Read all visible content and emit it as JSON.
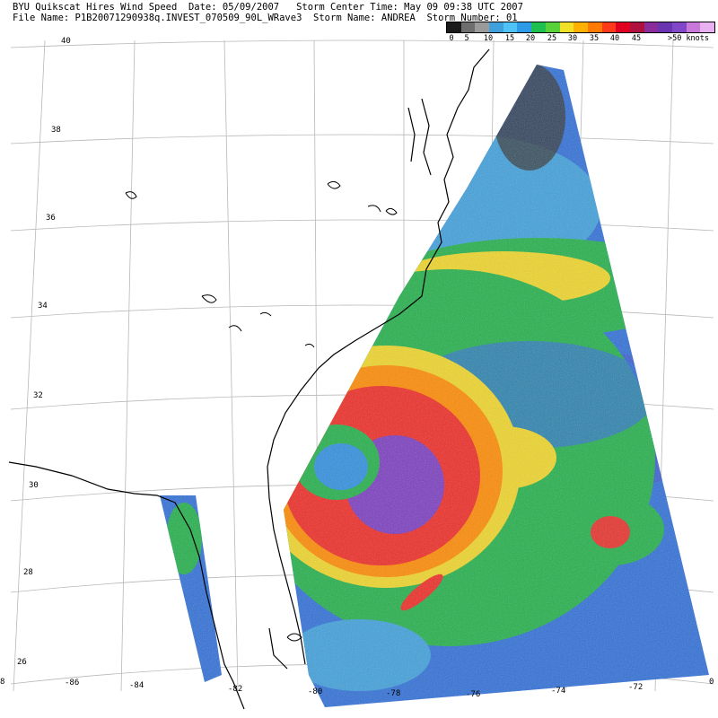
{
  "header": {
    "line1": "BYU Quikscat Hires Wind Speed  Date: 05/09/2007   Storm Center Time: May 09 09:38 UTC 2007",
    "line2": "File Name: P1B20071290938q.INVEST_070509_90L_WRave3  Storm Name: ANDREA  Storm Number: 01"
  },
  "colorbar": {
    "colors": [
      "#1a1a1a",
      "#6e6e6e",
      "#9a9a9a",
      "#3fa0dc",
      "#4fc3f7",
      "#2e9be8",
      "#20c050",
      "#59d23a",
      "#f0e028",
      "#ffb000",
      "#ff7a00",
      "#ff3a1c",
      "#e00020",
      "#b01040",
      "#8a2c9a",
      "#6a34b0",
      "#8048c8",
      "#c878d8",
      "#e8b0f0"
    ],
    "labels": [
      "0",
      "5",
      "10",
      "15",
      "20",
      "25",
      "30",
      "35",
      "40",
      "45",
      ">50 knots"
    ]
  },
  "map": {
    "lat_labels": [
      "40",
      "38",
      "36",
      "34",
      "32",
      "30",
      "28",
      "26"
    ],
    "lon_labels": [
      "-86",
      "-84",
      "-82",
      "-80",
      "-78",
      "-76",
      "-74",
      "-72"
    ],
    "corner_labels": [
      "8",
      "0"
    ]
  }
}
